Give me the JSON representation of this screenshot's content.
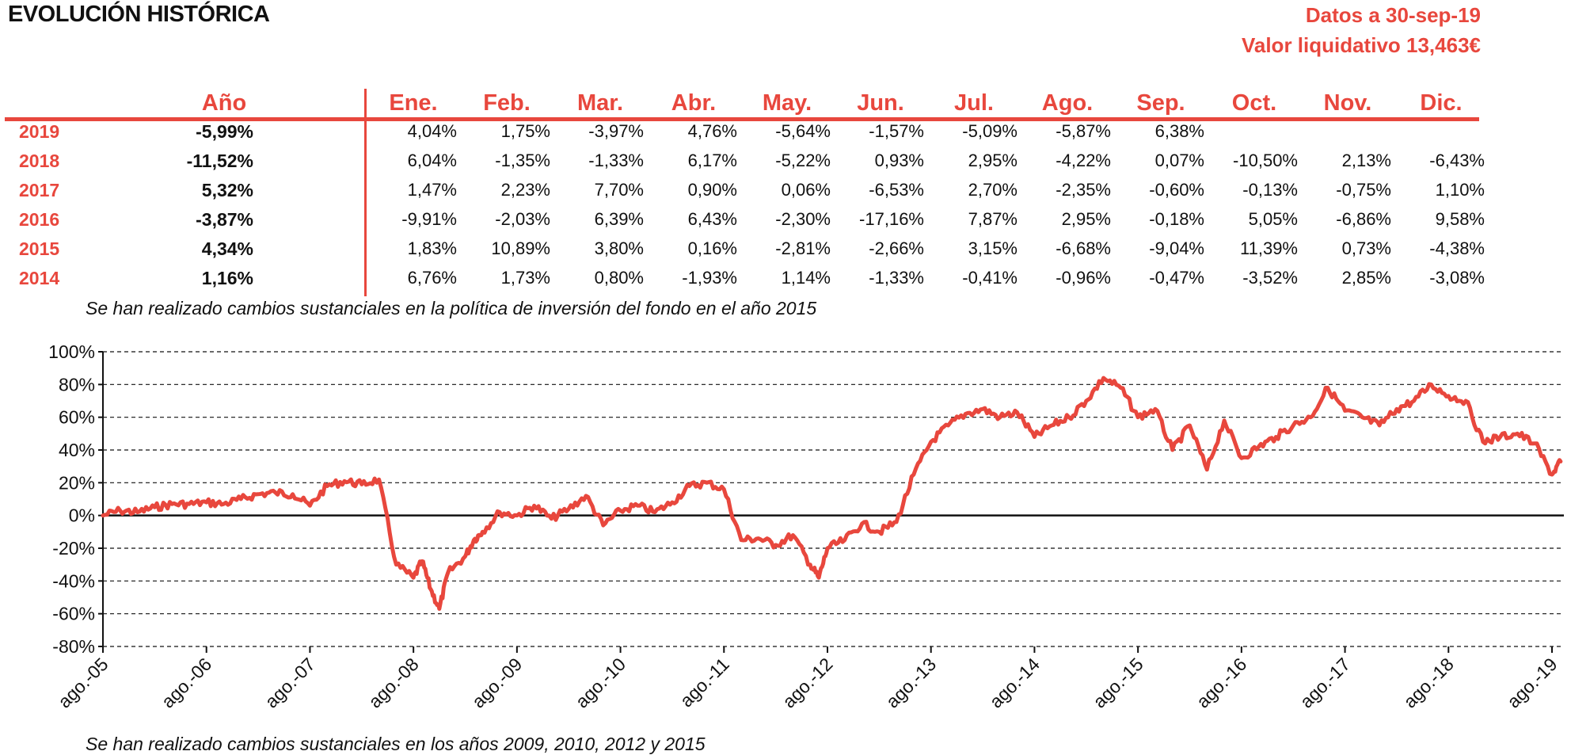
{
  "header": {
    "title": "EVOLUCIÓN HISTÓRICA",
    "date_label": "Datos a 30-sep-19",
    "nav_label": "Valor liquidativo 13,463€"
  },
  "table": {
    "year_header": "Año",
    "months": [
      "Ene.",
      "Feb.",
      "Mar.",
      "Abr.",
      "May.",
      "Jun.",
      "Jul.",
      "Ago.",
      "Sep.",
      "Oct.",
      "Nov.",
      "Dic."
    ],
    "rows": [
      {
        "year": "2019",
        "annual": "-5,99%",
        "monthly": [
          "4,04%",
          "1,75%",
          "-3,97%",
          "4,76%",
          "-5,64%",
          "-1,57%",
          "-5,09%",
          "-5,87%",
          "6,38%",
          "",
          "",
          ""
        ]
      },
      {
        "year": "2018",
        "annual": "-11,52%",
        "monthly": [
          "6,04%",
          "-1,35%",
          "-1,33%",
          "6,17%",
          "-5,22%",
          "0,93%",
          "2,95%",
          "-4,22%",
          "0,07%",
          "-10,50%",
          "2,13%",
          "-6,43%"
        ]
      },
      {
        "year": "2017",
        "annual": "5,32%",
        "monthly": [
          "1,47%",
          "2,23%",
          "7,70%",
          "0,90%",
          "0,06%",
          "-6,53%",
          "2,70%",
          "-2,35%",
          "-0,60%",
          "-0,13%",
          "-0,75%",
          "1,10%"
        ]
      },
      {
        "year": "2016",
        "annual": "-3,87%",
        "monthly": [
          "-9,91%",
          "-2,03%",
          "6,39%",
          "6,43%",
          "-2,30%",
          "-17,16%",
          "7,87%",
          "2,95%",
          "-0,18%",
          "5,05%",
          "-6,86%",
          "9,58%"
        ]
      },
      {
        "year": "2015",
        "annual": "4,34%",
        "monthly": [
          "1,83%",
          "10,89%",
          "3,80%",
          "0,16%",
          "-2,81%",
          "-2,66%",
          "3,15%",
          "-6,68%",
          "-9,04%",
          "11,39%",
          "0,73%",
          "-4,38%"
        ]
      },
      {
        "year": "2014",
        "annual": "1,16%",
        "monthly": [
          "6,76%",
          "1,73%",
          "0,80%",
          "-1,93%",
          "1,14%",
          "-1,33%",
          "-0,41%",
          "-0,96%",
          "-0,47%",
          "-3,52%",
          "2,85%",
          "-3,08%"
        ]
      }
    ]
  },
  "notes": {
    "table_note": "Se han realizado cambios sustanciales en la política de inversión del fondo en el año 2015",
    "chart_note": "Se han realizado cambios sustanciales en los años 2009, 2010, 2012 y 2015"
  },
  "chart_data": {
    "type": "line",
    "title": "",
    "xlabel": "",
    "ylabel": "",
    "ylim": [
      -80,
      100
    ],
    "yticks": [
      "100%",
      "80%",
      "60%",
      "40%",
      "20%",
      "0%",
      "-20%",
      "-40%",
      "-60%",
      "-80%"
    ],
    "ytick_values": [
      100,
      80,
      60,
      40,
      20,
      0,
      -20,
      -40,
      -60,
      -80
    ],
    "xticks": [
      "ago.-05",
      "ago.-06",
      "ago.-07",
      "ago.-08",
      "ago.-09",
      "ago.-10",
      "ago.-11",
      "ago.-12",
      "ago.-13",
      "ago.-14",
      "ago.-15",
      "ago.-16",
      "ago.-17",
      "ago.-18",
      "ago.-19"
    ],
    "grid": "horizontal dashed",
    "color": "#e8473d",
    "series": [
      {
        "x": [
          "ago.-05",
          "oct.-05",
          "dic.-05",
          "feb.-06",
          "abr.-06",
          "jun.-06",
          "ago.-06",
          "oct.-06",
          "dic.-06",
          "feb.-07",
          "abr.-07",
          "jun.-07",
          "ago.-07",
          "oct.-07",
          "dic.-07",
          "feb.-08",
          "abr.-08",
          "jun.-08",
          "ago.-08",
          "sep.-08",
          "oct.-08",
          "nov.-08",
          "dic.-08",
          "feb.-09",
          "mar.-09",
          "abr.-09",
          "jun.-09",
          "ago.-09",
          "oct.-09",
          "dic.-09",
          "feb.-10",
          "abr.-10",
          "jun.-10",
          "ago.-10",
          "oct.-10",
          "dic.-10",
          "feb.-11",
          "abr.-11",
          "jun.-11",
          "ago.-11",
          "oct.-11",
          "dic.-11",
          "feb.-12",
          "abr.-12",
          "jun.-12",
          "jul.-12",
          "ago.-12",
          "oct.-12",
          "dic.-12",
          "feb.-13",
          "abr.-13",
          "jun.-13",
          "ago.-13",
          "oct.-13",
          "dic.-13",
          "feb.-14",
          "abr.-14",
          "jun.-14",
          "ago.-14",
          "oct.-14",
          "dic.-14",
          "feb.-15",
          "abr.-15",
          "jun.-15",
          "ago.-15",
          "oct.-15",
          "dic.-15",
          "feb.-16",
          "abr.-16",
          "jun.-16",
          "ago.-16",
          "oct.-16",
          "dic.-16",
          "feb.-17",
          "abr.-17",
          "jun.-17",
          "ago.-17",
          "oct.-17",
          "dic.-17",
          "feb.-18",
          "abr.-18",
          "jun.-18",
          "ago.-18",
          "oct.-18",
          "dic.-18",
          "feb.-19",
          "abr.-19",
          "jun.-19",
          "ago.-19",
          "sep.-19"
        ],
        "values": [
          0,
          3,
          2,
          5,
          7,
          7,
          8,
          7,
          10,
          13,
          14,
          13,
          6,
          18,
          21,
          19,
          22,
          -30,
          -38,
          -28,
          -45,
          -57,
          -35,
          -25,
          -15,
          -10,
          2,
          0,
          6,
          -2,
          4,
          12,
          -6,
          3,
          6,
          2,
          8,
          18,
          20,
          16,
          -15,
          -14,
          -18,
          -12,
          -30,
          -38,
          -20,
          -15,
          -5,
          -10,
          -4,
          25,
          45,
          55,
          62,
          65,
          60,
          63,
          48,
          55,
          60,
          70,
          84,
          78,
          60,
          65,
          40,
          55,
          28,
          58,
          35,
          42,
          48,
          55,
          60,
          78,
          64,
          60,
          55,
          65,
          70,
          80,
          73,
          70,
          45,
          48,
          50,
          44,
          25,
          33
        ]
      }
    ]
  }
}
